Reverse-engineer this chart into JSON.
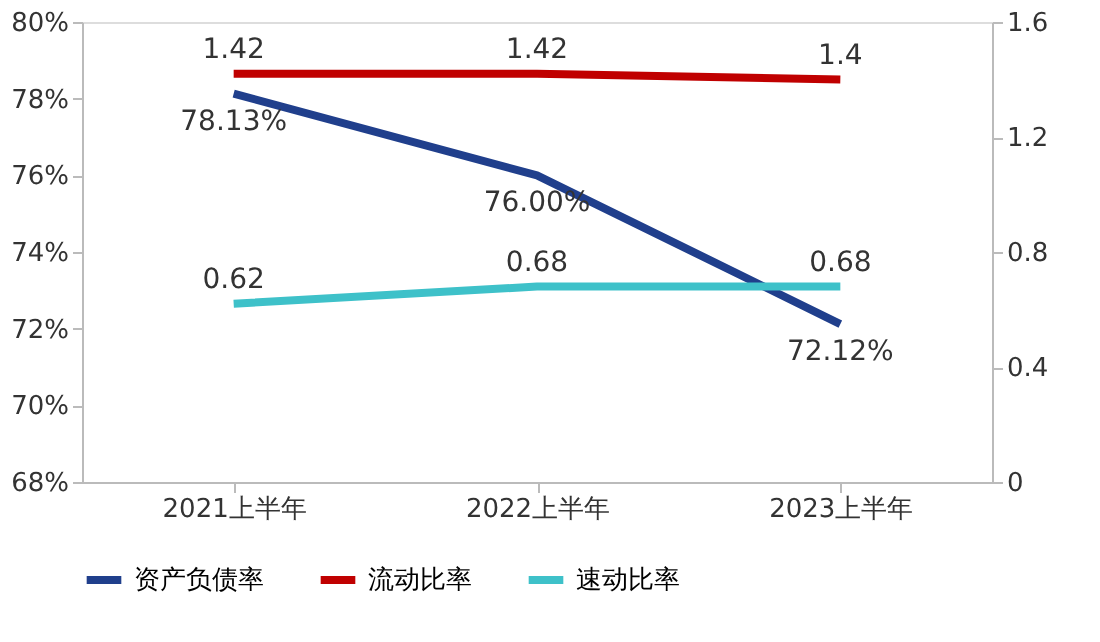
{
  "chart_data": {
    "type": "line",
    "categories": [
      "2021上半年",
      "2022上半年",
      "2023上半年"
    ],
    "ylim": [
      68,
      80
    ],
    "yticks": [
      {
        "value": 68,
        "label": "68%"
      },
      {
        "value": 70,
        "label": "70%"
      },
      {
        "value": 72,
        "label": "72%"
      },
      {
        "value": 74,
        "label": "74%"
      },
      {
        "value": 76,
        "label": "76%"
      },
      {
        "value": 78,
        "label": "78%"
      },
      {
        "value": 80,
        "label": "80%"
      }
    ],
    "y2lim": [
      0,
      1.6
    ],
    "y2ticks": [
      {
        "value": 0,
        "label": "0"
      },
      0.4,
      0.8,
      1.2,
      1.6
    ],
    "series": [
      {
        "name": "资产负债率",
        "color": "#203f8c",
        "values": [
          78.13,
          76.0,
          72.12
        ],
        "value_labels": [
          "78.13%",
          "76.00%",
          "72.12%"
        ]
      },
      {
        "name": "流动比率",
        "color": "#c00000",
        "axis": "y2",
        "values": [
          1.42,
          1.42,
          1.4
        ],
        "value_labels": [
          "1.42",
          "1.42",
          "1.4"
        ]
      },
      {
        "name": "速动比率",
        "color": "#3ec1c9",
        "axis": "y2",
        "values": [
          0.62,
          0.68,
          0.68
        ],
        "value_labels": [
          "0.62",
          "0.68",
          "0.68"
        ]
      }
    ],
    "legend": "bottom",
    "grid": false,
    "marker": "none",
    "line_style": "solid"
  }
}
